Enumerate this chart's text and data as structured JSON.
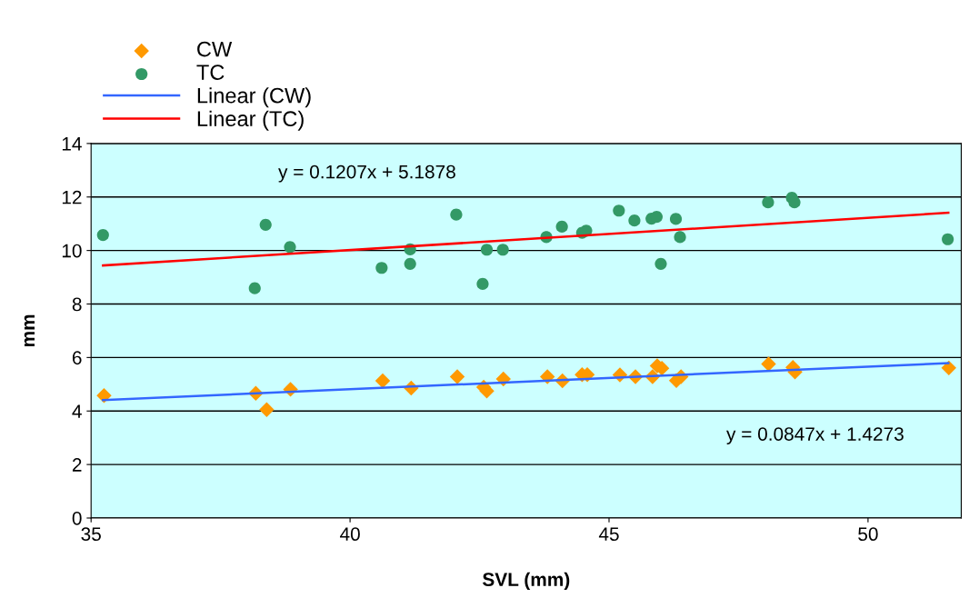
{
  "chart_data": {
    "type": "scatter",
    "xlabel": "SVL (mm)",
    "ylabel": "mm",
    "xlim": [
      35,
      51.8
    ],
    "xticks": [
      35,
      40,
      45,
      50
    ],
    "ylim": [
      0,
      14
    ],
    "yticks": [
      0,
      2,
      4,
      6,
      8,
      10,
      12,
      14
    ],
    "grid": "y",
    "legend": "top left",
    "series": [
      {
        "name": "CW",
        "marker": "diamond",
        "color": "#ff9900",
        "x": [
          35.25,
          38.18,
          38.39,
          38.85,
          40.63,
          41.18,
          42.07,
          42.58,
          42.64,
          42.96,
          43.81,
          44.1,
          44.48,
          44.58,
          45.21,
          45.51,
          45.84,
          45.93,
          46.02,
          46.3,
          46.39,
          48.08,
          48.55,
          48.59,
          51.56
        ],
        "values": [
          4.58,
          4.66,
          4.05,
          4.81,
          5.13,
          4.86,
          5.28,
          4.89,
          4.75,
          5.2,
          5.28,
          5.13,
          5.36,
          5.36,
          5.35,
          5.28,
          5.28,
          5.69,
          5.6,
          5.14,
          5.28,
          5.76,
          5.63,
          5.46,
          5.61
        ]
      },
      {
        "name": "TC",
        "marker": "circle",
        "color": "#339966",
        "x": [
          35.23,
          38.37,
          38.16,
          38.84,
          40.61,
          41.16,
          41.16,
          42.05,
          42.56,
          42.64,
          42.95,
          43.79,
          44.09,
          44.48,
          44.56,
          45.19,
          45.49,
          45.82,
          45.92,
          46.0,
          46.29,
          46.37,
          48.07,
          48.53,
          48.58,
          51.54
        ],
        "values": [
          10.58,
          10.96,
          8.59,
          10.13,
          9.35,
          10.04,
          9.5,
          11.34,
          8.75,
          10.03,
          10.03,
          10.5,
          10.89,
          10.66,
          10.74,
          11.49,
          11.12,
          11.19,
          11.26,
          9.5,
          11.18,
          10.5,
          11.8,
          11.97,
          11.8,
          10.42
        ]
      },
      {
        "name": "Linear (CW)",
        "type": "line",
        "marker": "none",
        "line_style": "solid",
        "color": "#3366ff",
        "x": [
          35.23,
          51.55
        ],
        "values": [
          4.41,
          5.79
        ]
      },
      {
        "name": "Linear (TC)",
        "type": "line",
        "marker": "none",
        "line_style": "solid",
        "color": "#ff0000",
        "x": [
          35.23,
          51.55
        ],
        "values": [
          9.44,
          11.41
        ]
      }
    ],
    "annotations": [
      "y = 0.1207x + 5.1878",
      "y = 0.0847x + 1.4273"
    ]
  }
}
